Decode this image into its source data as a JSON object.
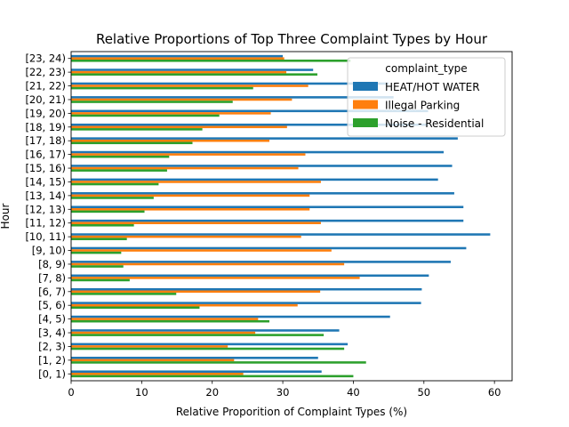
{
  "chart_data": {
    "type": "bar",
    "orientation": "horizontal",
    "title": "Relative Proportions of Top Three Complaint Types by Hour",
    "xlabel": "Relative Proporition of Complaint Types (%)",
    "ylabel": "Hour",
    "xlim": [
      0,
      62.5
    ],
    "xticks": [
      "0",
      "10",
      "20",
      "30",
      "40",
      "50",
      "60"
    ],
    "grid": false,
    "legend": {
      "title": "complaint_type",
      "placement": "top-right"
    },
    "categories": [
      "[0, 1)",
      "[1, 2)",
      "[2, 3)",
      "[3, 4)",
      "[4, 5)",
      "[5, 6)",
      "[6, 7)",
      "[7, 8)",
      "[8, 9)",
      "[9, 10)",
      "[10, 11)",
      "[11, 12)",
      "[12, 13)",
      "[13, 14)",
      "[14, 15)",
      "[15, 16)",
      "[16, 17)",
      "[17, 18)",
      "[18, 19)",
      "[19, 20)",
      "[20, 21)",
      "[21, 22)",
      "[22, 23)",
      "[23, 24)"
    ],
    "series": [
      {
        "name": "HEAT/HOT WATER",
        "color": "#1f77b4",
        "values": [
          35.5,
          35.0,
          39.2,
          38.0,
          45.2,
          49.6,
          49.7,
          50.7,
          53.8,
          56.0,
          59.4,
          55.6,
          55.6,
          54.3,
          52.0,
          54.0,
          52.8,
          54.8,
          50.6,
          50.6,
          45.7,
          45.0,
          34.3,
          30.0
        ]
      },
      {
        "name": "Illegal Parking",
        "color": "#ff7f0e",
        "values": [
          24.4,
          23.1,
          22.2,
          26.1,
          26.5,
          32.1,
          35.3,
          40.9,
          38.7,
          36.9,
          32.6,
          35.4,
          33.8,
          33.8,
          35.4,
          32.2,
          33.2,
          28.1,
          30.6,
          28.3,
          31.3,
          33.6,
          30.5,
          30.2
        ]
      },
      {
        "name": "Noise - Residential",
        "color": "#2ca02c",
        "values": [
          40.0,
          41.8,
          38.7,
          35.8,
          28.1,
          18.2,
          14.9,
          8.3,
          7.4,
          7.1,
          7.9,
          8.9,
          10.4,
          11.7,
          12.4,
          13.6,
          13.9,
          17.2,
          18.6,
          21.0,
          22.9,
          25.8,
          34.9,
          39.6
        ]
      }
    ]
  }
}
